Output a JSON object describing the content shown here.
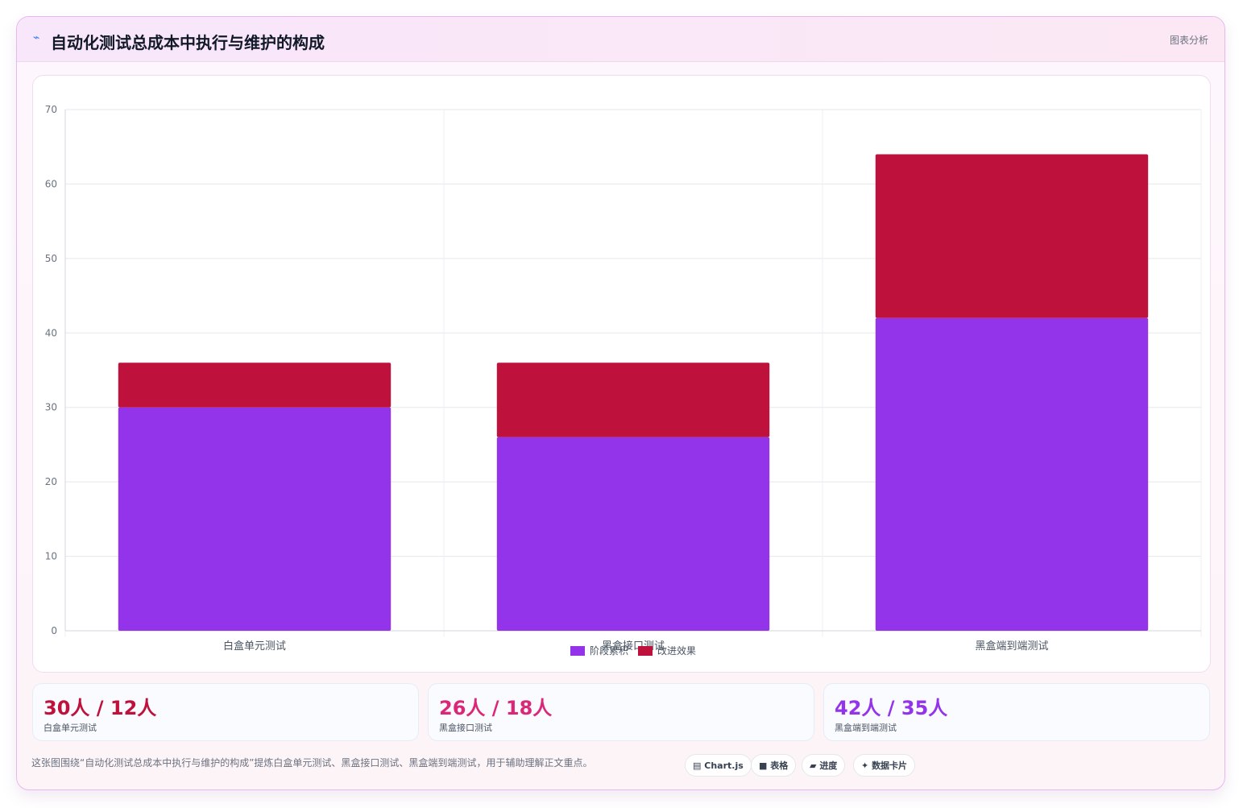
{
  "header": {
    "icon": "trend-line-icon",
    "icon_glyph": "⌁",
    "title": "自动化测试总成本中执行与维护的构成",
    "tag": "图表分析"
  },
  "chart_data": {
    "type": "bar",
    "stacked": true,
    "categories": [
      "白盒单元测试",
      "黑盒接口测试",
      "黑盒端到端测试"
    ],
    "series": [
      {
        "name": "阶段累积",
        "color": "#9333ea",
        "values": [
          30,
          26,
          42
        ]
      },
      {
        "name": "改进效果",
        "color": "#be123c",
        "values": [
          6,
          10,
          22
        ]
      }
    ],
    "ylim": [
      0,
      70
    ],
    "yticks": [
      0,
      10,
      20,
      30,
      40,
      50,
      60,
      70
    ],
    "grid": true,
    "legend": "bottom",
    "title": "",
    "xlabel": "",
    "ylabel": ""
  },
  "stats": [
    {
      "value": "30人 / 12人",
      "label": "白盒单元测试",
      "color": "#be123c"
    },
    {
      "value": "26人 / 18人",
      "label": "黑盒接口测试",
      "color": "#db2777"
    },
    {
      "value": "42人 / 35人",
      "label": "黑盒端到端测试",
      "color": "#9333ea"
    }
  ],
  "footer": {
    "text": "这张图围绕“自动化测试总成本中执行与维护的构成”提炼白盒单元测试、黑盒接口测试、黑盒端到端测试，用于辅助理解正文重点。",
    "chips": [
      {
        "icon": "chart-icon",
        "glyph": "▤",
        "label": "Chart.js"
      },
      {
        "icon": "table-icon",
        "glyph": "■",
        "label": "表格"
      },
      {
        "icon": "progress-icon",
        "glyph": "▰",
        "label": "进度"
      },
      {
        "icon": "sparkle-icon",
        "glyph": "✦",
        "label": "数据卡片"
      }
    ]
  }
}
